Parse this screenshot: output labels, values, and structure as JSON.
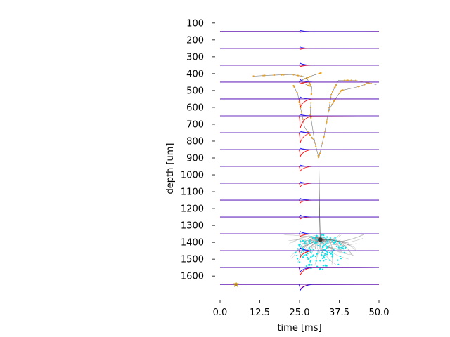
{
  "chart_data": {
    "type": "line",
    "xlabel": "time [ms]",
    "ylabel": "depth [um]",
    "xlim": [
      0,
      50
    ],
    "ylim": [
      1745,
      5
    ],
    "x_ticks": [
      "0.0",
      "12.5",
      "25.0",
      "37.5",
      "50.0"
    ],
    "x_tick_values": [
      0,
      12.5,
      25,
      37.5,
      50
    ],
    "y_ticks": [
      "100",
      "200",
      "300",
      "400",
      "500",
      "600",
      "700",
      "800",
      "900",
      "1000",
      "1100",
      "1200",
      "1300",
      "1400",
      "1500",
      "1600"
    ],
    "y_tick_values": [
      100,
      200,
      300,
      400,
      500,
      600,
      700,
      800,
      900,
      1000,
      1100,
      1200,
      1300,
      1400,
      1500,
      1600
    ],
    "trace_baselines_um": [
      150,
      250,
      350,
      450,
      550,
      650,
      750,
      850,
      950,
      1050,
      1150,
      1250,
      1350,
      1450,
      1550,
      1650
    ],
    "trace_time_range_ms": [
      0,
      50
    ],
    "spike_time_ms": 25,
    "series": [
      {
        "color": "#ff0000",
        "deflections_um": [
          5,
          6,
          8,
          10,
          50,
          75,
          60,
          42,
          28,
          20,
          16,
          12,
          16,
          40,
          45,
          30
        ]
      },
      {
        "color": "#0000ff",
        "deflections_um": [
          -6,
          -8,
          -12,
          -15,
          -12,
          -8,
          -8,
          -8,
          -8,
          -8,
          -10,
          -12,
          -14,
          -18,
          25,
          35
        ]
      }
    ],
    "stimulus_marker": {
      "time_ms": 5,
      "depth_um": 1650,
      "color": "#b8860b",
      "marker": "star"
    },
    "morphology": {
      "soma": {
        "time_ms": 31.5,
        "depth_um": 1385
      },
      "apical_color": "#e8a020",
      "basal_color": "#00e5ee",
      "neurite_color": "#555555"
    },
    "colors": {
      "trace_baseline": "#6a2fbf",
      "axis": "#000000"
    }
  }
}
